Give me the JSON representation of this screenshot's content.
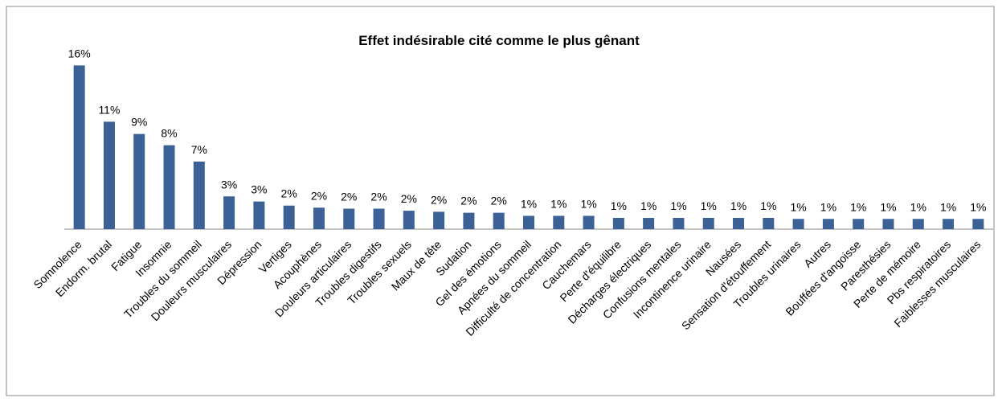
{
  "chart_data": {
    "type": "bar",
    "title": "Effet indésirable cité comme le plus gênant",
    "categories": [
      "Somnolence",
      "Endorm. brutal",
      "Fatigue",
      "Insomnie",
      "Troubles du sommeil",
      "Douleurs musculaires",
      "Dépression",
      "Vertiges",
      "Acouphènes",
      "Douleurs articulaires",
      "Troubles digestifs",
      "Troubles sexuels",
      "Maux de tête",
      "Sudation",
      "Gel des émotions",
      "Apnées du sommeil",
      "Difficulté de concentration",
      "Cauchemars",
      "Perte d'équilibre",
      "Décharges électriques",
      "Confusions mentales",
      "Incontinence urinaire",
      "Nausées",
      "Sensation d'étouffement",
      "Troubles urinaires",
      "Autres",
      "Bouffées d'angoisse",
      "Paresthésies",
      "Perte de mémoire",
      "Pbs respiratoires",
      "Faiblesses musculaires"
    ],
    "values": [
      16,
      10.5,
      9.3,
      8.2,
      6.6,
      3.2,
      2.7,
      2.3,
      2.1,
      2.0,
      2.0,
      1.8,
      1.7,
      1.6,
      1.6,
      1.3,
      1.3,
      1.3,
      1.1,
      1.1,
      1.1,
      1.1,
      1.1,
      1.1,
      1.0,
      1.0,
      1.0,
      1.0,
      1.0,
      1.0,
      1.0
    ],
    "value_labels": [
      "16%",
      "11%",
      "9%",
      "8%",
      "7%",
      "3%",
      "3%",
      "2%",
      "2%",
      "2%",
      "2%",
      "2%",
      "2%",
      "2%",
      "2%",
      "1%",
      "1%",
      "1%",
      "1%",
      "1%",
      "1%",
      "1%",
      "1%",
      "1%",
      "1%",
      "1%",
      "1%",
      "1%",
      "1%",
      "1%",
      "1%"
    ],
    "color": "#3b6196",
    "ylim": [
      0,
      16.5
    ]
  }
}
